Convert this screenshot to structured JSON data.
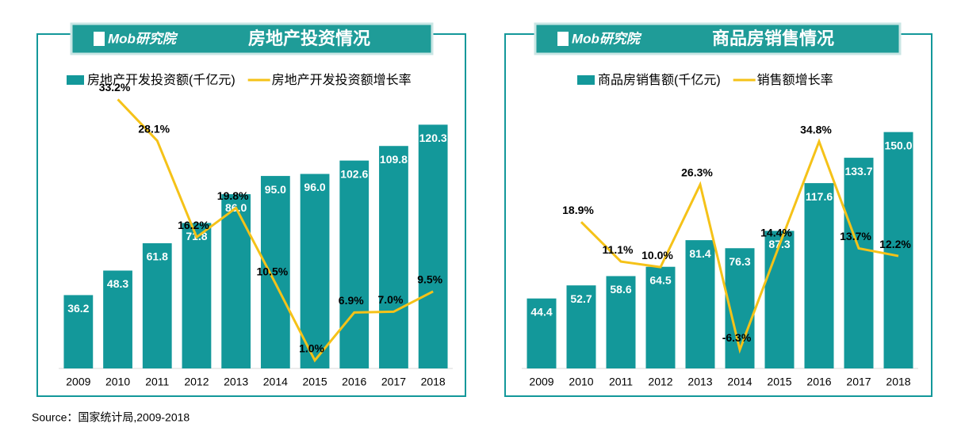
{
  "source": "Source：国家统计局,2009-2018",
  "chart_data": [
    {
      "type": "bar",
      "brand": "Mob研究院",
      "title": "房地产投资情况",
      "categories": [
        "2009",
        "2010",
        "2011",
        "2012",
        "2013",
        "2014",
        "2015",
        "2016",
        "2017",
        "2018"
      ],
      "ylim": [
        0,
        140
      ],
      "y2lim": [
        0,
        35
      ],
      "series": [
        {
          "name": "房地产开发投资额(千亿元)",
          "type": "bar",
          "color": "#13989a",
          "values": [
            36.2,
            48.3,
            61.8,
            71.8,
            86.0,
            95.0,
            96.0,
            102.6,
            109.8,
            120.3
          ],
          "value_labels": [
            "36.2",
            "48.3",
            "61.8",
            "71.8",
            "86.0",
            "95.0",
            "96.0",
            "102.6",
            "109.8",
            "120.3"
          ]
        },
        {
          "name": "房地产开发投资额增长率",
          "type": "line",
          "axis": "y2",
          "color": "#f5c218",
          "values": [
            null,
            33.2,
            28.1,
            16.2,
            19.8,
            10.5,
            1.0,
            6.9,
            7.0,
            9.5
          ],
          "value_labels": [
            null,
            "33.2%",
            "28.1%",
            "16.2%",
            "19.8%",
            "10.5%",
            "1.0%",
            "6.9%",
            "7.0%",
            "9.5%"
          ]
        }
      ]
    },
    {
      "type": "bar",
      "brand": "Mob研究院",
      "title": "商品房销售情况",
      "categories": [
        "2009",
        "2010",
        "2011",
        "2012",
        "2013",
        "2014",
        "2015",
        "2016",
        "2017",
        "2018"
      ],
      "ylim": [
        0,
        180
      ],
      "y2lim": [
        -10,
        46
      ],
      "series": [
        {
          "name": "商品房销售额(千亿元)",
          "type": "bar",
          "color": "#13989a",
          "values": [
            44.4,
            52.7,
            58.6,
            64.5,
            81.4,
            76.3,
            87.3,
            117.6,
            133.7,
            150.0
          ],
          "value_labels": [
            "44.4",
            "52.7",
            "58.6",
            "64.5",
            "81.4",
            "76.3",
            "87.3",
            "117.6",
            "133.7",
            "150.0"
          ]
        },
        {
          "name": "销售额增长率",
          "type": "line",
          "axis": "y2",
          "color": "#f5c218",
          "values": [
            null,
            18.9,
            11.1,
            10.0,
            26.3,
            -6.3,
            14.4,
            34.8,
            13.7,
            12.2
          ],
          "value_labels": [
            null,
            "18.9%",
            "11.1%",
            "10.0%",
            "26.3%",
            "-6.3%",
            "14.4%",
            "34.8%",
            "13.7%",
            "12.2%"
          ]
        }
      ]
    }
  ]
}
